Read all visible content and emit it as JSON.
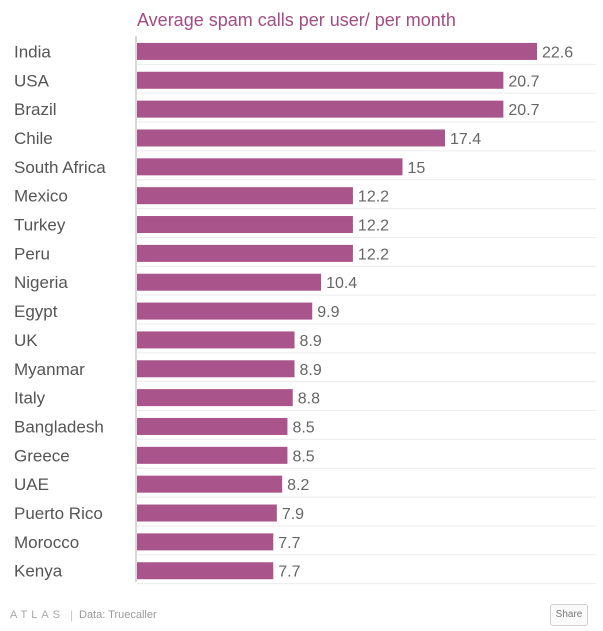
{
  "chart_data": {
    "type": "bar",
    "orientation": "horizontal",
    "title": "Average spam calls per user/ per month",
    "categories": [
      "India",
      "USA",
      "Brazil",
      "Chile",
      "South Africa",
      "Mexico",
      "Turkey",
      "Peru",
      "Nigeria",
      "Egypt",
      "UK",
      "Myanmar",
      "Italy",
      "Bangladesh",
      "Greece",
      "UAE",
      "Puerto Rico",
      "Morocco",
      "Kenya"
    ],
    "values": [
      22.6,
      20.7,
      20.7,
      17.4,
      15,
      12.2,
      12.2,
      12.2,
      10.4,
      9.9,
      8.9,
      8.9,
      8.8,
      8.5,
      8.5,
      8.2,
      7.9,
      7.7,
      7.7
    ],
    "value_labels": [
      "22.6",
      "20.7",
      "20.7",
      "17.4",
      "15",
      "12.2",
      "12.2",
      "12.2",
      "10.4",
      "9.9",
      "8.9",
      "8.9",
      "8.8",
      "8.5",
      "8.5",
      "8.2",
      "7.9",
      "7.7",
      "7.7"
    ],
    "xlim": [
      0,
      22.6
    ],
    "bar_color": "#a9548a",
    "title_color": "#a24d83",
    "grid": true
  },
  "footer": {
    "brand": "ATLAS",
    "separator": "|",
    "source": "Data: Truecaller",
    "share_label": "Share"
  }
}
